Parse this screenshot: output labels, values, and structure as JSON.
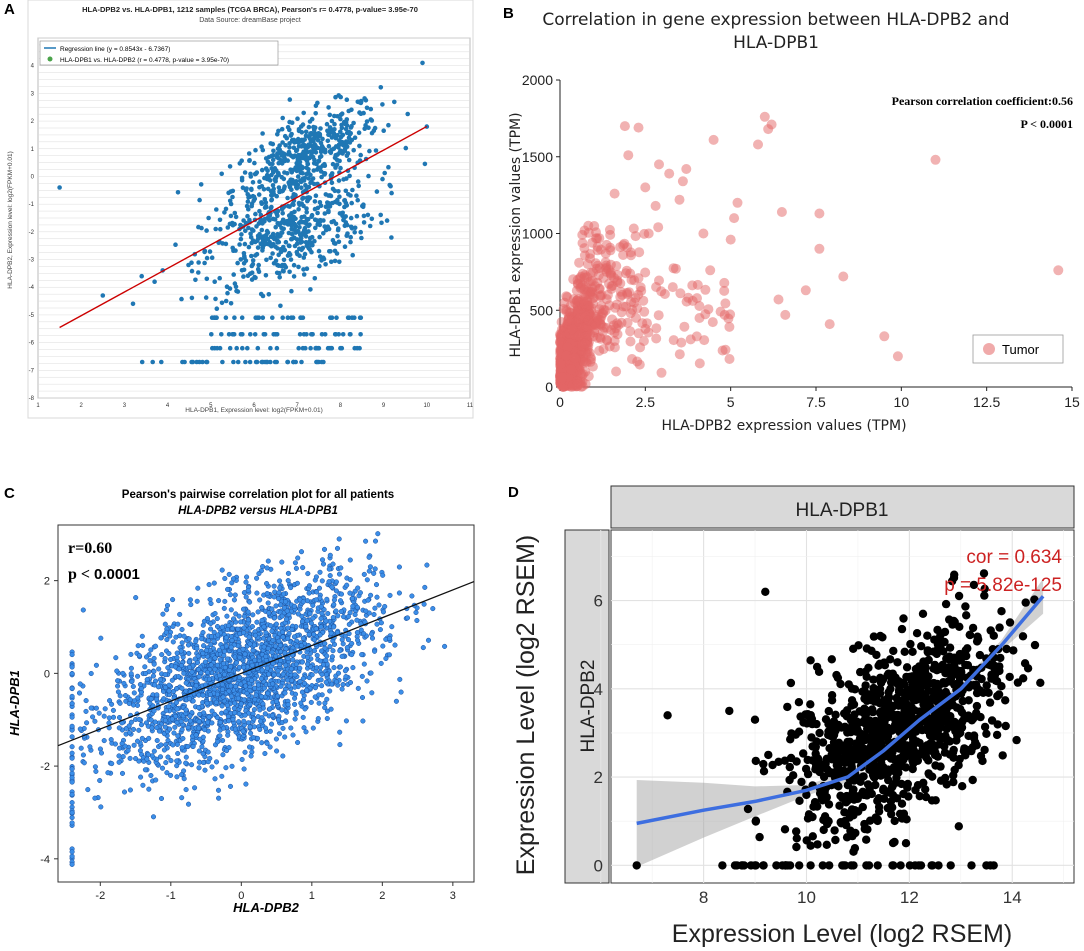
{
  "colors": {
    "panel_a_point": "#1f77b4",
    "panel_a_line": "#cc0000",
    "panel_b_point": "#e46565",
    "panel_c_point": "#3b8ee8",
    "panel_c_stroke": "#1b4f9c",
    "panel_d_point": "#000000",
    "panel_d_line": "#3d6ee0",
    "panel_d_text": "#cc2222"
  },
  "chart_data": [
    {
      "panel": "A",
      "type": "scatter",
      "title": "HLA-DPB2 vs. HLA-DPB1, 1212 samples (TCGA BRCA), Pearson's r= 0.4778, p-value= 3.95e-70",
      "subtitle": "Data Source: dreamBase project",
      "xlabel": "HLA-DPB1, Expression level: log2(FPKM+0.01)",
      "ylabel": "HLA-DPB2, Expression level: log2(FPKM+0.01)",
      "xlim": [
        1,
        11
      ],
      "ylim": [
        -8,
        5
      ],
      "x_ticks": [
        "1",
        "2",
        "3",
        "4",
        "5",
        "6",
        "7",
        "8",
        "9",
        "10",
        "11"
      ],
      "y_ticks": [
        "-8",
        "-7",
        "-6",
        "-5",
        "-4",
        "-3",
        "-2",
        "-1",
        "0",
        "1",
        "2",
        "3",
        "4"
      ],
      "legend": [
        "Regression line (y = 0.8543x - 6.7367)",
        "HLA-DPB1 vs. HLA-DPB2 (r = 0.4778, p-value = 3.95e-70)"
      ],
      "regression": {
        "slope": 0.8543,
        "intercept": -6.7367,
        "x_range": [
          1.5,
          10.0
        ]
      },
      "n_points": 1212
    },
    {
      "panel": "B",
      "type": "scatter",
      "title": "Correlation in gene expression between HLA-DPB2 and HLA-DPB1",
      "xlabel": "HLA-DPB2 expression values (TPM)",
      "ylabel": "HLA-DPB1 expression values (TPM)",
      "xlim": [
        0,
        15
      ],
      "ylim": [
        0,
        2000
      ],
      "x_ticks": [
        "0",
        "2.5",
        "5",
        "7.5",
        "10",
        "12.5",
        "15"
      ],
      "y_ticks": [
        "0",
        "500",
        "1000",
        "1500",
        "2000"
      ],
      "annotation": "Pearson correlation coefficient:0.56",
      "pvalue": "P < 0.0001",
      "legend": [
        "Tumor"
      ],
      "highlight_points": [
        [
          14.6,
          760
        ],
        [
          11.0,
          1480
        ],
        [
          9.5,
          330
        ],
        [
          9.9,
          200
        ],
        [
          8.3,
          720
        ],
        [
          7.9,
          410
        ],
        [
          7.6,
          1130
        ],
        [
          7.6,
          900
        ],
        [
          6.2,
          1710
        ],
        [
          6.0,
          1760
        ],
        [
          6.1,
          1680
        ],
        [
          5.8,
          1580
        ],
        [
          6.5,
          1140
        ],
        [
          6.4,
          570
        ],
        [
          7.2,
          630
        ],
        [
          6.6,
          470
        ],
        [
          5.2,
          1200
        ],
        [
          5.1,
          1100
        ],
        [
          5.0,
          960
        ],
        [
          4.5,
          1610
        ],
        [
          4.2,
          1000
        ],
        [
          4.4,
          760
        ],
        [
          3.7,
          1420
        ],
        [
          3.6,
          1340
        ],
        [
          3.5,
          1220
        ],
        [
          3.2,
          1390
        ],
        [
          2.9,
          1450
        ],
        [
          2.8,
          1180
        ],
        [
          2.6,
          1000
        ],
        [
          2.5,
          1300
        ],
        [
          1.9,
          1700
        ],
        [
          2.3,
          1690
        ],
        [
          2.0,
          1510
        ],
        [
          1.6,
          1260
        ]
      ]
    },
    {
      "panel": "C",
      "type": "scatter",
      "title": "Pearson's pairwise correlation plot for all patients",
      "subtitle": "HLA-DPB2 versus HLA-DPB1",
      "xlabel": "HLA-DPB2",
      "ylabel": "HLA-DPB1",
      "xlim": [
        -2.6,
        3.3
      ],
      "ylim": [
        -4.5,
        3.2
      ],
      "x_ticks": [
        "-2",
        "-1",
        "0",
        "1",
        "2",
        "3"
      ],
      "y_ticks": [
        "-4",
        "-2",
        "0",
        "2"
      ],
      "annotation": "r=0.60",
      "pvalue_prefix": "p < ",
      "pvalue_value": "0.0001",
      "regression": {
        "slope": 0.6,
        "intercept": 0.0
      }
    },
    {
      "panel": "D",
      "type": "scatter",
      "strip_top": "HLA-DPB1",
      "strip_left": "HLA-DPB2",
      "xlabel": "Expression Level (log2 RSEM)",
      "ylabel": "Expression Level (log2 RSEM)",
      "xlim": [
        6.2,
        15.2
      ],
      "ylim": [
        -0.4,
        7.6
      ],
      "x_ticks": [
        "8",
        "10",
        "12",
        "14"
      ],
      "y_ticks": [
        "0",
        "2",
        "4",
        "6"
      ],
      "annotation": "cor = 0.634",
      "pvalue": "p = 5.82e-125",
      "smooth_curve": [
        [
          6.7,
          0.95
        ],
        [
          8,
          1.25
        ],
        [
          9,
          1.45
        ],
        [
          10,
          1.7
        ],
        [
          10.8,
          2.0
        ],
        [
          11.5,
          2.6
        ],
        [
          12.2,
          3.3
        ],
        [
          13,
          4.0
        ],
        [
          13.8,
          5.0
        ],
        [
          14.6,
          6.1
        ]
      ]
    }
  ],
  "panel_labels": [
    "A",
    "B",
    "C",
    "D"
  ]
}
